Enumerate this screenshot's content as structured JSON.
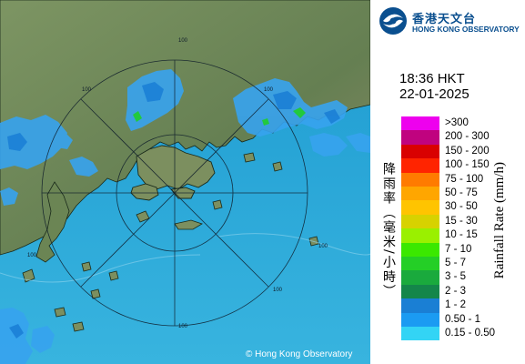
{
  "header": {
    "logo_zh": "香港天文台",
    "logo_en": "HONG KONG OBSERVATORY",
    "logo_icon": "hko-logo-icon",
    "time": "18:36 HKT",
    "date": "22-01-2025"
  },
  "map": {
    "copyright": "© Hong Kong Observatory",
    "range_rings": [
      64,
      128
    ],
    "ring_labels": [
      "100",
      "100",
      "100",
      "100",
      "100",
      "100",
      "100"
    ],
    "colors": {
      "sea": "#29a9d6",
      "land": "#6f8a58",
      "rain_light": "#37a3ef",
      "rain_green": "#22c93d"
    }
  },
  "legend": {
    "title_zh": "降雨率（毫米/小時）",
    "title_en": "Rainfall Rate (mm/h)",
    "items": [
      {
        "label": ">300",
        "color": "#ee00ee"
      },
      {
        "label": "200 - 300",
        "color": "#c0037f"
      },
      {
        "label": "150 - 200",
        "color": "#d90101"
      },
      {
        "label": "100 - 150",
        "color": "#ff2400"
      },
      {
        "label": "75 - 100",
        "color": "#ff7b00"
      },
      {
        "label": "50 - 75",
        "color": "#ffa600"
      },
      {
        "label": "30 - 50",
        "color": "#ffc400"
      },
      {
        "label": "15 - 30",
        "color": "#d7d200"
      },
      {
        "label": "10 - 15",
        "color": "#9af000"
      },
      {
        "label": "7 - 10",
        "color": "#3be800"
      },
      {
        "label": "5 - 7",
        "color": "#24cf26"
      },
      {
        "label": "3 - 5",
        "color": "#1aaa3d"
      },
      {
        "label": "2 - 3",
        "color": "#14864a"
      },
      {
        "label": "1 - 2",
        "color": "#1a7fd4"
      },
      {
        "label": "0.50 - 1",
        "color": "#1b9bf2"
      },
      {
        "label": "0.15 - 0.50",
        "color": "#33d4f5"
      }
    ]
  }
}
